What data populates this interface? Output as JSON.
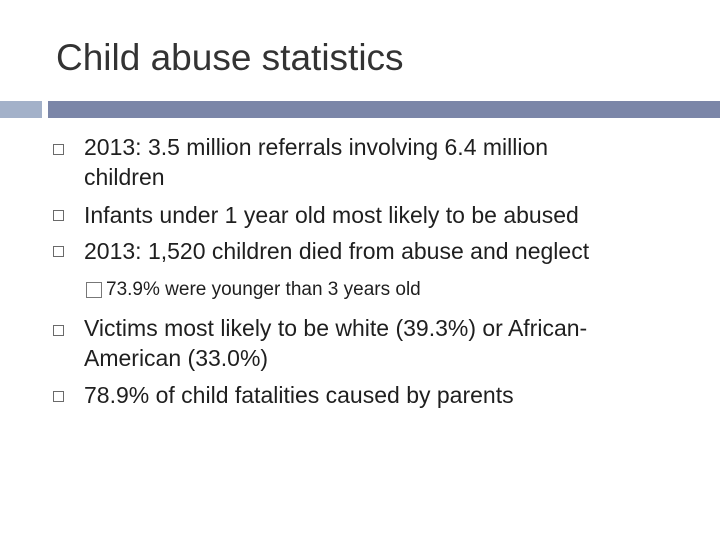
{
  "slide": {
    "title": "Child abuse statistics",
    "bullets": [
      {
        "lines": [
          "2013: 3.5 million referrals involving 6.4 million",
          "children"
        ]
      },
      {
        "lines": [
          "Infants under 1 year old most likely to be abused"
        ]
      },
      {
        "lines": [
          "2013: 1,520 children died from abuse and neglect"
        ]
      },
      {
        "lines": [
          "Victims most likely to be white (39.3%) or African-",
          "American (33.0%)"
        ]
      },
      {
        "lines": [
          "78.9% of child fatalities caused by parents"
        ]
      }
    ],
    "sub_bullet": "73.9% were younger than 3 years old"
  },
  "colors": {
    "bar_light": "#a3b1c9",
    "bar_dark": "#7b86a8",
    "title_text": "#333333"
  }
}
